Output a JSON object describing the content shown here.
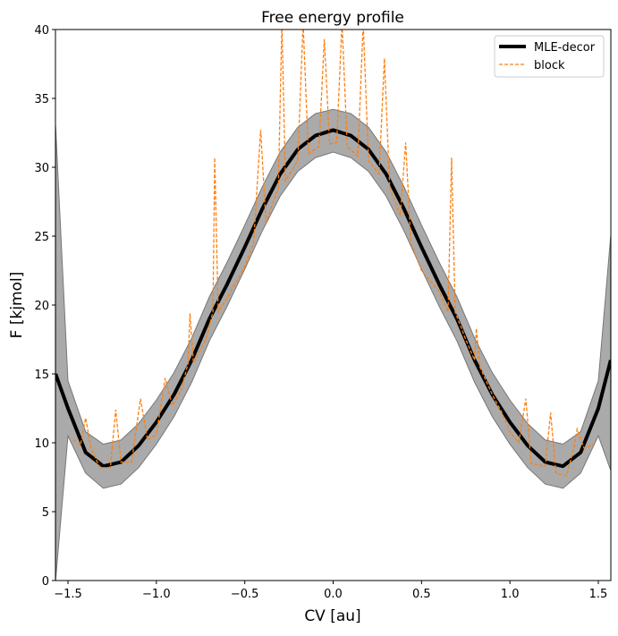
{
  "chart_data": {
    "type": "line",
    "title": "Free energy profile",
    "xlabel": "CV [au]",
    "ylabel": "F [kjmol]",
    "xlim": [
      -1.5708,
      1.5708
    ],
    "ylim": [
      0,
      40
    ],
    "xticks": [
      -1.5,
      -1.0,
      -0.5,
      0.0,
      0.5,
      1.0,
      1.5
    ],
    "xtick_labels": [
      "−1.5",
      "−1.0",
      "−0.5",
      "0.0",
      "0.5",
      "1.0",
      "1.5"
    ],
    "yticks": [
      0,
      5,
      10,
      15,
      20,
      25,
      30,
      35,
      40
    ],
    "ytick_labels": [
      "0",
      "5",
      "10",
      "15",
      "20",
      "25",
      "30",
      "35",
      "40"
    ],
    "grid": false,
    "legend_position": "top-right",
    "series": [
      {
        "name": "MLE-decor",
        "color": "#000000",
        "style": "solid",
        "x": [
          -1.57,
          -1.5,
          -1.4,
          -1.3,
          -1.2,
          -1.1,
          -1.0,
          -0.9,
          -0.8,
          -0.7,
          -0.6,
          -0.5,
          -0.4,
          -0.3,
          -0.2,
          -0.1,
          0.0,
          0.1,
          0.2,
          0.3,
          0.4,
          0.5,
          0.6,
          0.7,
          0.8,
          0.9,
          1.0,
          1.1,
          1.2,
          1.3,
          1.4,
          1.5,
          1.57
        ],
        "y": [
          15,
          12.5,
          9.3,
          8.3,
          8.6,
          9.8,
          11.5,
          13.5,
          16,
          19,
          21.5,
          24.2,
          27,
          29.5,
          31.3,
          32.3,
          32.7,
          32.3,
          31.3,
          29.5,
          27,
          24.2,
          21.5,
          19,
          16,
          13.5,
          11.5,
          9.8,
          8.6,
          8.3,
          9.3,
          12.5,
          16
        ],
        "band_lower": [
          0,
          10.5,
          7.8,
          6.7,
          7.0,
          8.2,
          9.9,
          11.9,
          14.4,
          17.4,
          19.9,
          22.6,
          25.4,
          27.9,
          29.7,
          30.7,
          31.1,
          30.7,
          29.7,
          27.9,
          25.4,
          22.6,
          19.9,
          17.4,
          14.4,
          11.9,
          9.9,
          8.2,
          7.0,
          6.7,
          7.8,
          10.5,
          8
        ],
        "band_upper": [
          33,
          14.5,
          10.8,
          9.9,
          10.2,
          11.4,
          13.1,
          15.1,
          17.6,
          20.6,
          23.1,
          25.8,
          28.6,
          31.1,
          32.9,
          33.9,
          34.2,
          33.9,
          32.9,
          31.1,
          28.6,
          25.8,
          23.1,
          20.6,
          17.6,
          15.1,
          13.1,
          11.4,
          10.2,
          9.9,
          10.8,
          14.5,
          25
        ],
        "band_color": "#aaaaaa"
      },
      {
        "name": "block",
        "color": "#ff7f0e",
        "style": "dashed",
        "x": [
          -1.47,
          -1.43,
          -1.4,
          -1.37,
          -1.32,
          -1.26,
          -1.23,
          -1.2,
          -1.14,
          -1.09,
          -1.05,
          -1.0,
          -0.95,
          -0.91,
          -0.86,
          -0.82,
          -0.81,
          -0.79,
          -0.72,
          -0.68,
          -0.67,
          -0.65,
          -0.6,
          -0.5,
          -0.45,
          -0.41,
          -0.38,
          -0.31,
          -0.29,
          -0.27,
          -0.2,
          -0.17,
          -0.14,
          -0.08,
          -0.05,
          -0.02,
          0.02,
          0.05,
          0.08,
          0.14,
          0.17,
          0.2,
          0.26,
          0.29,
          0.32,
          0.38,
          0.41,
          0.44,
          0.5,
          0.6,
          0.65,
          0.67,
          0.69,
          0.75,
          0.8,
          0.81,
          0.83,
          0.9,
          0.95,
          1.0,
          1.05,
          1.09,
          1.12,
          1.2,
          1.23,
          1.26,
          1.32,
          1.36,
          1.38,
          1.42,
          1.47
        ],
        "y": [
          10.2,
          9.8,
          11.8,
          9.6,
          8.2,
          8.2,
          12.4,
          8.6,
          8.6,
          13.2,
          10.2,
          10.6,
          14.7,
          12.7,
          13.8,
          15.8,
          19.4,
          15.8,
          17.5,
          19.5,
          30.7,
          19.5,
          20.5,
          22.8,
          24.5,
          32.7,
          26,
          28.5,
          40.5,
          29,
          30.5,
          40.5,
          31,
          31.5,
          39.3,
          31.7,
          31.8,
          40.5,
          31.5,
          30.8,
          40.5,
          30.5,
          29.5,
          37.9,
          28.5,
          26.5,
          31.8,
          24.5,
          22.5,
          21,
          19.5,
          30.7,
          19.5,
          17.5,
          16,
          18.3,
          15.5,
          13.5,
          12.3,
          10.8,
          10,
          13.2,
          8.5,
          8.3,
          12.2,
          7.8,
          7.6,
          9.5,
          11.0,
          9.6,
          9.9
        ]
      }
    ]
  }
}
